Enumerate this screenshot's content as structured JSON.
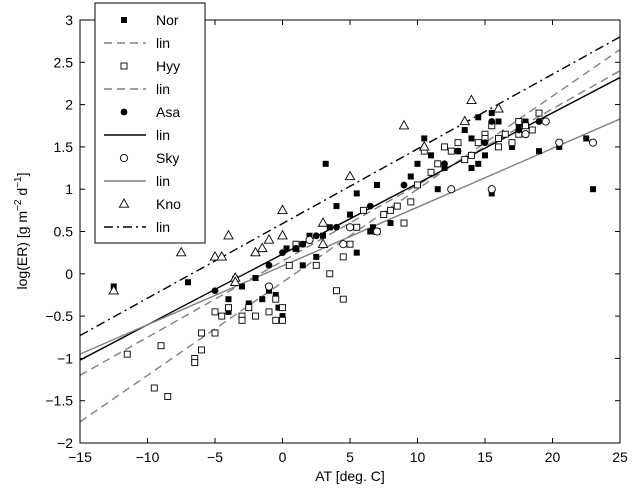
{
  "chart_data": {
    "type": "scatter",
    "xlabel": "AT [deg. C]",
    "ylabel": "log(ER) [g m^-2 d^-1]",
    "ylabel_parts": {
      "base": "log(ER) [g m",
      "sup1": "−2",
      "mid": " d",
      "sup2": "−1",
      "end": "]"
    },
    "xlim": [
      -15,
      25
    ],
    "ylim": [
      -2,
      3
    ],
    "x_ticks": [
      -15,
      -10,
      -5,
      0,
      5,
      10,
      15,
      20,
      25
    ],
    "y_ticks": [
      -2,
      -1.5,
      -1,
      -0.5,
      0,
      0.5,
      1,
      1.5,
      2,
      2.5,
      3
    ],
    "x_tick_labels": [
      "−15",
      "−10",
      "−5",
      "0",
      "5",
      "10",
      "15",
      "20",
      "25"
    ],
    "y_tick_labels": [
      "−2",
      "−1.5",
      "−1",
      "−0.5",
      "0",
      "0.5",
      "1",
      "1.5",
      "2",
      "2.5",
      "3"
    ],
    "grid": false,
    "legend_position": "top-left",
    "legend": [
      {
        "label": "Nor",
        "kind": "marker",
        "marker": "filled-square"
      },
      {
        "label": "lin",
        "kind": "line",
        "color": "#808080",
        "dash": "dashed"
      },
      {
        "label": "Hyy",
        "kind": "marker",
        "marker": "open-square"
      },
      {
        "label": "lin",
        "kind": "line",
        "color": "#808080",
        "dash": "dashed"
      },
      {
        "label": "Asa",
        "kind": "marker",
        "marker": "filled-circle"
      },
      {
        "label": "lin",
        "kind": "line",
        "color": "#000000",
        "dash": "solid"
      },
      {
        "label": "Sky",
        "kind": "marker",
        "marker": "open-circle"
      },
      {
        "label": "lin",
        "kind": "line",
        "color": "#808080",
        "dash": "solid"
      },
      {
        "label": "Kno",
        "kind": "marker",
        "marker": "open-triangle"
      },
      {
        "label": "lin",
        "kind": "line",
        "color": "#000000",
        "dash": "dashdot"
      }
    ],
    "series": [
      {
        "name": "Nor",
        "marker": "filled-square",
        "points": [
          [
            -12.5,
            -0.15
          ],
          [
            -7,
            -0.1
          ],
          [
            -4,
            -0.3
          ],
          [
            -4,
            -0.45
          ],
          [
            -3,
            -0.15
          ],
          [
            -2.5,
            -0.35
          ],
          [
            -2,
            -0.05
          ],
          [
            -1.5,
            -0.3
          ],
          [
            -1,
            -0.2
          ],
          [
            -0.5,
            -0.25
          ],
          [
            -0.3,
            -0.4
          ],
          [
            0,
            -0.5
          ],
          [
            0.3,
            0.3
          ],
          [
            1.5,
            0.35
          ],
          [
            1.5,
            0.1
          ],
          [
            2,
            0.45
          ],
          [
            2,
            0.4
          ],
          [
            2.5,
            0.2
          ],
          [
            3,
            0.45
          ],
          [
            3.2,
            1.3
          ],
          [
            3.5,
            0.55
          ],
          [
            4,
            0.8
          ],
          [
            5,
            0.7
          ],
          [
            5.5,
            0.25
          ],
          [
            5.5,
            0.95
          ],
          [
            6.5,
            0.5
          ],
          [
            6.7,
            0.55
          ],
          [
            7,
            1.05
          ],
          [
            8,
            0.6
          ],
          [
            9.5,
            1.15
          ],
          [
            10,
            1.3
          ],
          [
            10.5,
            1.6
          ],
          [
            11,
            1.4
          ],
          [
            12,
            1.25
          ],
          [
            13,
            1.45
          ],
          [
            13.5,
            1.7
          ],
          [
            14,
            1.25
          ],
          [
            14,
            1.6
          ],
          [
            14.5,
            1.85
          ],
          [
            15,
            1.4
          ],
          [
            15.5,
            1.9
          ],
          [
            16,
            1.8
          ],
          [
            17,
            1.5
          ],
          [
            17.5,
            1.75
          ],
          [
            18,
            1.8
          ],
          [
            19,
            1.45
          ],
          [
            20.5,
            1.5
          ],
          [
            22.5,
            1.6
          ],
          [
            23,
            1.0
          ],
          [
            15.5,
            0.95
          ],
          [
            11.5,
            1.0
          ],
          [
            14.5,
            1.3
          ]
        ]
      },
      {
        "name": "Hyy",
        "marker": "open-square",
        "points": [
          [
            -11.5,
            -0.95
          ],
          [
            -9.5,
            -1.35
          ],
          [
            -9,
            -0.85
          ],
          [
            -8.5,
            -1.45
          ],
          [
            -6.5,
            -1.0
          ],
          [
            -6.5,
            -1.05
          ],
          [
            -6,
            -0.9
          ],
          [
            -6,
            -0.7
          ],
          [
            -5,
            -0.7
          ],
          [
            -5,
            -0.45
          ],
          [
            -4.5,
            -0.5
          ],
          [
            -4,
            -0.4
          ],
          [
            -3,
            -0.5
          ],
          [
            -3,
            -0.55
          ],
          [
            -2.5,
            -0.4
          ],
          [
            -2,
            -0.5
          ],
          [
            -1,
            -0.45
          ],
          [
            -0.5,
            -0.3
          ],
          [
            -0.5,
            -0.55
          ],
          [
            0,
            -0.55
          ],
          [
            0,
            -0.4
          ],
          [
            0.5,
            0.1
          ],
          [
            1,
            0.3
          ],
          [
            1,
            0.35
          ],
          [
            2.5,
            0.1
          ],
          [
            3.5,
            0.0
          ],
          [
            4,
            -0.2
          ],
          [
            4.5,
            0.2
          ],
          [
            4.5,
            -0.3
          ],
          [
            5,
            0.35
          ],
          [
            5.5,
            0.55
          ],
          [
            6,
            0.75
          ],
          [
            7,
            0.5
          ],
          [
            7.5,
            0.7
          ],
          [
            8,
            0.75
          ],
          [
            8.5,
            0.8
          ],
          [
            9,
            0.6
          ],
          [
            9.5,
            0.85
          ],
          [
            10,
            1.05
          ],
          [
            10.5,
            1.45
          ],
          [
            11,
            1.2
          ],
          [
            11.5,
            1.3
          ],
          [
            12,
            1.5
          ],
          [
            12.5,
            1.45
          ],
          [
            13,
            1.55
          ],
          [
            13.5,
            1.35
          ],
          [
            14,
            1.4
          ],
          [
            14.5,
            1.55
          ],
          [
            15,
            1.65
          ],
          [
            15,
            1.6
          ],
          [
            15.5,
            1.75
          ],
          [
            16,
            1.6
          ],
          [
            16.5,
            1.65
          ],
          [
            17,
            1.55
          ],
          [
            17.5,
            1.65
          ],
          [
            18,
            1.75
          ],
          [
            18.5,
            1.7
          ],
          [
            19,
            1.9
          ],
          [
            17.5,
            1.8
          ],
          [
            16,
            1.5
          ]
        ]
      },
      {
        "name": "Asa",
        "marker": "filled-circle",
        "points": [
          [
            -5,
            -0.2
          ],
          [
            -3.5,
            -0.05
          ],
          [
            -1,
            0.1
          ],
          [
            0,
            0.25
          ],
          [
            1,
            0.3
          ],
          [
            1.5,
            0.35
          ],
          [
            2,
            0.4
          ],
          [
            2.5,
            0.45
          ],
          [
            4,
            0.55
          ],
          [
            6.5,
            0.8
          ],
          [
            9,
            1.05
          ],
          [
            12,
            1.3
          ],
          [
            13,
            1.45
          ],
          [
            15,
            1.55
          ],
          [
            17.5,
            1.7
          ],
          [
            19,
            1.8
          ],
          [
            15.5,
            1.8
          ]
        ]
      },
      {
        "name": "Sky",
        "marker": "open-circle",
        "points": [
          [
            -1,
            -0.15
          ],
          [
            2,
            0.4
          ],
          [
            4.5,
            0.35
          ],
          [
            7,
            0.5
          ],
          [
            12.5,
            1.0
          ],
          [
            15.5,
            1.0
          ],
          [
            18,
            1.65
          ],
          [
            20.5,
            1.55
          ],
          [
            23,
            1.55
          ],
          [
            19.5,
            1.8
          ],
          [
            5,
            0.55
          ]
        ]
      },
      {
        "name": "Kno",
        "marker": "open-triangle",
        "points": [
          [
            -12.5,
            -0.2
          ],
          [
            -7.5,
            0.25
          ],
          [
            -5,
            0.2
          ],
          [
            -4.5,
            0.2
          ],
          [
            -4,
            0.45
          ],
          [
            -3.5,
            -0.05
          ],
          [
            -1.5,
            0.3
          ],
          [
            -1,
            0.4
          ],
          [
            0,
            0.75
          ],
          [
            0,
            0.45
          ],
          [
            3,
            0.6
          ],
          [
            5,
            1.15
          ],
          [
            9,
            1.75
          ],
          [
            10.5,
            1.5
          ],
          [
            14,
            2.05
          ],
          [
            16,
            1.95
          ],
          [
            13.5,
            1.8
          ],
          [
            3,
            0.35
          ],
          [
            -2,
            0.25
          ],
          [
            -3.5,
            -0.1
          ]
        ]
      }
    ],
    "fit_lines": [
      {
        "series": "Nor",
        "color": "#808080",
        "dash": "dashed",
        "x": [
          -15,
          25
        ],
        "y": [
          -1.2,
          2.4
        ]
      },
      {
        "series": "Hyy",
        "color": "#808080",
        "dash": "dashed",
        "x": [
          -15,
          25
        ],
        "y": [
          -1.75,
          2.65
        ]
      },
      {
        "series": "Asa",
        "color": "#000000",
        "dash": "solid",
        "x": [
          -15,
          25
        ],
        "y": [
          -1.02,
          2.32
        ]
      },
      {
        "series": "Sky",
        "color": "#808080",
        "dash": "solid",
        "x": [
          -15,
          25
        ],
        "y": [
          -0.95,
          1.83
        ]
      },
      {
        "series": "Kno",
        "color": "#000000",
        "dash": "dashdot",
        "x": [
          -15,
          25
        ],
        "y": [
          -0.73,
          2.8
        ]
      }
    ]
  }
}
